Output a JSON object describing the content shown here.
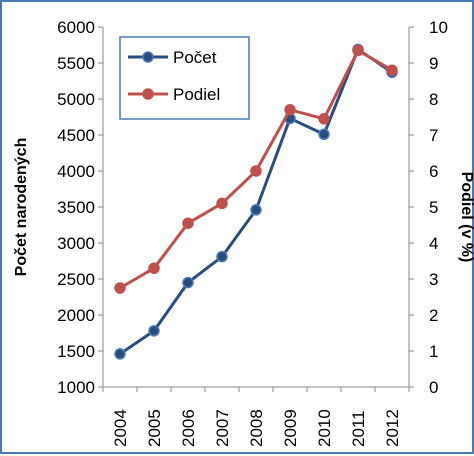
{
  "chart_data": {
    "type": "line",
    "x": [
      "2004",
      "2005",
      "2006",
      "2007",
      "2008",
      "2009",
      "2010",
      "2011",
      "2012"
    ],
    "ylabel_left": "Počet narodených",
    "ylabel_right": "Podiel (v %)",
    "ylim_left": [
      1000,
      6000
    ],
    "ylim_right": [
      0,
      10
    ],
    "yticks_left": [
      "1000",
      "1500",
      "2000",
      "2500",
      "3000",
      "3500",
      "4000",
      "4500",
      "5000",
      "5500",
      "6000"
    ],
    "yticks_right": [
      "0",
      "1",
      "2",
      "3",
      "4",
      "5",
      "6",
      "7",
      "8",
      "9",
      "10"
    ],
    "grid": false,
    "legend_position": "top-left",
    "series": [
      {
        "name": "Počet",
        "axis": "left",
        "color": "#2a4d80",
        "marker_edge": "#4a7ab5",
        "values": [
          1460,
          1780,
          2450,
          2810,
          3460,
          4730,
          4510,
          5690,
          5370
        ]
      },
      {
        "name": "Podiel",
        "axis": "right",
        "color": "#c0504d",
        "marker_edge": "#c0504d",
        "values": [
          2.75,
          3.3,
          4.55,
          5.1,
          6.0,
          7.7,
          7.45,
          9.35,
          8.8
        ]
      }
    ]
  }
}
